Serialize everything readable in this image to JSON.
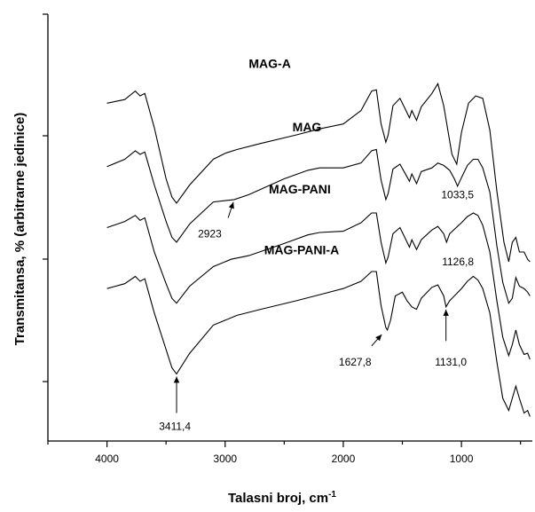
{
  "chart_data": {
    "type": "line",
    "title": "",
    "xlabel": "Talasni broj, cm",
    "xlabel_sup": "-1",
    "ylabel": "Transmitansa, % (arbitrarne jedinice)",
    "xlim": [
      4500,
      400
    ],
    "x_reversed": true,
    "x_ticks": [
      4000,
      3000,
      2000,
      1000
    ],
    "y_tick_count": 5,
    "grid": false,
    "series": [
      {
        "name": "MAG-A",
        "points": [
          [
            4000,
            10.2
          ],
          [
            3850,
            10.5
          ],
          [
            3760,
            11.2
          ],
          [
            3720,
            10.8
          ],
          [
            3680,
            11.0
          ],
          [
            3600,
            8.2
          ],
          [
            3500,
            4.0
          ],
          [
            3450,
            2.5
          ],
          [
            3411,
            2.0
          ],
          [
            3300,
            3.5
          ],
          [
            3100,
            5.6
          ],
          [
            3000,
            6.1
          ],
          [
            2900,
            6.4
          ],
          [
            2700,
            6.9
          ],
          [
            2400,
            7.6
          ],
          [
            2200,
            8.1
          ],
          [
            2000,
            8.5
          ],
          [
            1850,
            9.6
          ],
          [
            1760,
            11.2
          ],
          [
            1720,
            11.3
          ],
          [
            1680,
            8.5
          ],
          [
            1640,
            7.0
          ],
          [
            1620,
            7.6
          ],
          [
            1580,
            10.0
          ],
          [
            1520,
            10.6
          ],
          [
            1480,
            9.8
          ],
          [
            1440,
            9.0
          ],
          [
            1420,
            9.6
          ],
          [
            1380,
            8.8
          ],
          [
            1340,
            9.9
          ],
          [
            1250,
            11.0
          ],
          [
            1200,
            11.8
          ],
          [
            1150,
            10.0
          ],
          [
            1080,
            6.0
          ],
          [
            1040,
            5.2
          ],
          [
            1000,
            7.8
          ],
          [
            940,
            10.2
          ],
          [
            880,
            10.8
          ],
          [
            820,
            10.6
          ],
          [
            760,
            8.0
          ],
          [
            700,
            3.0
          ],
          [
            640,
            -1.2
          ],
          [
            600,
            -2.8
          ],
          [
            570,
            -1.2
          ],
          [
            540,
            -0.8
          ],
          [
            510,
            -2.0
          ],
          [
            470,
            -2.0
          ],
          [
            440,
            -2.6
          ],
          [
            420,
            -2.8
          ]
        ]
      },
      {
        "name": "MAG",
        "points": [
          [
            4000,
            5.0
          ],
          [
            3850,
            5.6
          ],
          [
            3760,
            6.3
          ],
          [
            3720,
            6.0
          ],
          [
            3680,
            6.2
          ],
          [
            3600,
            3.5
          ],
          [
            3500,
            0.5
          ],
          [
            3450,
            -0.8
          ],
          [
            3411,
            -1.2
          ],
          [
            3300,
            0.3
          ],
          [
            3100,
            2.1
          ],
          [
            2923,
            2.3
          ],
          [
            2800,
            2.7
          ],
          [
            2500,
            4.0
          ],
          [
            2300,
            4.7
          ],
          [
            2200,
            4.9
          ],
          [
            2000,
            4.9
          ],
          [
            1850,
            5.3
          ],
          [
            1760,
            6.3
          ],
          [
            1720,
            6.4
          ],
          [
            1680,
            3.9
          ],
          [
            1640,
            2.3
          ],
          [
            1620,
            2.8
          ],
          [
            1580,
            4.8
          ],
          [
            1520,
            5.2
          ],
          [
            1480,
            4.5
          ],
          [
            1440,
            3.8
          ],
          [
            1420,
            4.4
          ],
          [
            1380,
            3.6
          ],
          [
            1340,
            4.6
          ],
          [
            1250,
            4.9
          ],
          [
            1200,
            5.3
          ],
          [
            1150,
            5.1
          ],
          [
            1100,
            4.7
          ],
          [
            1060,
            4.0
          ],
          [
            1033,
            3.4
          ],
          [
            1000,
            4.1
          ],
          [
            950,
            5.1
          ],
          [
            900,
            5.6
          ],
          [
            860,
            5.6
          ],
          [
            820,
            4.9
          ],
          [
            760,
            2.9
          ],
          [
            700,
            -1.5
          ],
          [
            650,
            -4.5
          ],
          [
            600,
            -6.2
          ],
          [
            570,
            -5.8
          ],
          [
            540,
            -4.1
          ],
          [
            510,
            -4.8
          ],
          [
            470,
            -5.0
          ],
          [
            440,
            -5.3
          ],
          [
            420,
            -5.6
          ]
        ]
      },
      {
        "name": "MAG-PANI",
        "points": [
          [
            4000,
            0.0
          ],
          [
            3850,
            0.5
          ],
          [
            3760,
            1.0
          ],
          [
            3720,
            0.6
          ],
          [
            3680,
            0.8
          ],
          [
            3600,
            -2.0
          ],
          [
            3500,
            -4.6
          ],
          [
            3450,
            -5.8
          ],
          [
            3411,
            -6.2
          ],
          [
            3300,
            -4.8
          ],
          [
            3100,
            -3.2
          ],
          [
            2950,
            -2.6
          ],
          [
            2800,
            -2.3
          ],
          [
            2500,
            -1.3
          ],
          [
            2300,
            -0.6
          ],
          [
            2200,
            -0.4
          ],
          [
            2000,
            -0.3
          ],
          [
            1850,
            0.4
          ],
          [
            1760,
            1.2
          ],
          [
            1720,
            1.2
          ],
          [
            1680,
            -1.2
          ],
          [
            1640,
            -2.9
          ],
          [
            1620,
            -2.4
          ],
          [
            1580,
            -0.5
          ],
          [
            1520,
            0.0
          ],
          [
            1480,
            -0.8
          ],
          [
            1440,
            -1.6
          ],
          [
            1420,
            -1.0
          ],
          [
            1380,
            -1.8
          ],
          [
            1340,
            -1.0
          ],
          [
            1250,
            -0.2
          ],
          [
            1200,
            0.1
          ],
          [
            1150,
            -0.5
          ],
          [
            1126,
            -1.2
          ],
          [
            1100,
            -0.5
          ],
          [
            1000,
            0.4
          ],
          [
            950,
            0.9
          ],
          [
            900,
            1.2
          ],
          [
            860,
            1.0
          ],
          [
            820,
            0.2
          ],
          [
            760,
            -2.0
          ],
          [
            700,
            -6.0
          ],
          [
            650,
            -9.0
          ],
          [
            600,
            -10.5
          ],
          [
            570,
            -9.6
          ],
          [
            540,
            -8.4
          ],
          [
            510,
            -9.6
          ],
          [
            470,
            -10.4
          ],
          [
            440,
            -10.3
          ],
          [
            420,
            -10.8
          ]
        ]
      },
      {
        "name": "MAG-PANI-A",
        "points": [
          [
            4000,
            -5.0
          ],
          [
            3850,
            -4.6
          ],
          [
            3760,
            -4.0
          ],
          [
            3720,
            -4.4
          ],
          [
            3680,
            -4.2
          ],
          [
            3600,
            -7.0
          ],
          [
            3500,
            -10.0
          ],
          [
            3450,
            -11.5
          ],
          [
            3411,
            -12.0
          ],
          [
            3300,
            -10.3
          ],
          [
            3100,
            -8.0
          ],
          [
            2900,
            -7.2
          ],
          [
            2700,
            -6.7
          ],
          [
            2400,
            -6.0
          ],
          [
            2200,
            -5.5
          ],
          [
            2000,
            -5.0
          ],
          [
            1850,
            -4.4
          ],
          [
            1760,
            -3.6
          ],
          [
            1720,
            -3.6
          ],
          [
            1680,
            -6.4
          ],
          [
            1640,
            -8.2
          ],
          [
            1627,
            -8.4
          ],
          [
            1600,
            -7.6
          ],
          [
            1560,
            -5.6
          ],
          [
            1500,
            -5.3
          ],
          [
            1460,
            -6.0
          ],
          [
            1420,
            -6.5
          ],
          [
            1380,
            -6.7
          ],
          [
            1340,
            -5.8
          ],
          [
            1250,
            -4.9
          ],
          [
            1200,
            -4.7
          ],
          [
            1150,
            -5.6
          ],
          [
            1131,
            -6.5
          ],
          [
            1100,
            -6.0
          ],
          [
            1000,
            -5.0
          ],
          [
            950,
            -4.4
          ],
          [
            900,
            -4.0
          ],
          [
            860,
            -4.3
          ],
          [
            820,
            -5.0
          ],
          [
            760,
            -7.0
          ],
          [
            700,
            -11.0
          ],
          [
            650,
            -14.0
          ],
          [
            600,
            -15.0
          ],
          [
            570,
            -14.0
          ],
          [
            540,
            -13.0
          ],
          [
            510,
            -14.0
          ],
          [
            470,
            -15.2
          ],
          [
            440,
            -15.0
          ],
          [
            420,
            -15.5
          ]
        ]
      }
    ],
    "series_labels": [
      {
        "series": 0,
        "x": 2800,
        "y": 13.1,
        "text": "MAG-A"
      },
      {
        "series": 1,
        "x": 2430,
        "y": 7.9,
        "text": "MAG"
      },
      {
        "series": 2,
        "x": 2630,
        "y": 2.8,
        "text": "MAG-PANI"
      },
      {
        "series": 3,
        "x": 2670,
        "y": -2.2,
        "text": "MAG-PANI-A"
      }
    ],
    "annotations": [
      {
        "text": "2923",
        "point": [
          2923,
          2.3
        ],
        "text_at": [
          3130,
          -0.8
        ],
        "tail": [
          2975,
          0.8
        ]
      },
      {
        "text": "1033,5",
        "point": [
          1033,
          3.4
        ],
        "text_at": [
          1033,
          2.4
        ]
      },
      {
        "text": "1126,8",
        "point": [
          1126,
          -1.2
        ],
        "text_at": [
          1030,
          -3.1
        ]
      },
      {
        "text": "1627,8",
        "point": [
          1660,
          -8.6
        ],
        "text_at": [
          1900,
          -11.3
        ],
        "tail": [
          1760,
          -9.7
        ]
      },
      {
        "text": "1131,0",
        "point": [
          1131,
          -6.5
        ],
        "text_at": [
          1090,
          -11.3
        ],
        "tail": [
          1131,
          -9.3
        ]
      },
      {
        "text": "3411,4",
        "point": [
          3411,
          -12.0
        ],
        "text_at": [
          3425,
          -16.6
        ],
        "tail": [
          3411,
          -15.2
        ]
      }
    ]
  }
}
